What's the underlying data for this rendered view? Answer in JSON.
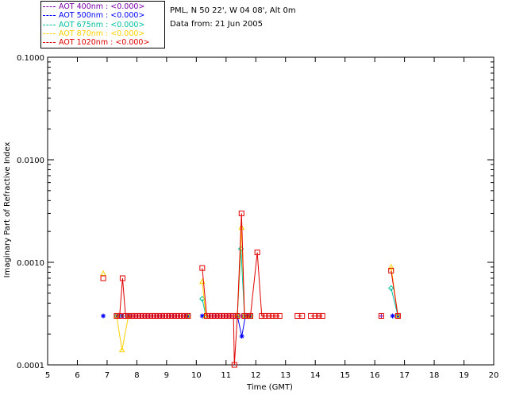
{
  "legend": [
    {
      "label": "AOT  400nm : <0.000>",
      "color": "#7a00a8"
    },
    {
      "label": "AOT  500nm : <0.000>",
      "color": "#0000ff"
    },
    {
      "label": "AOT  675nm : <0.000>",
      "color": "#00c0a0"
    },
    {
      "label": "AOT  870nm : <0.000>",
      "color": "#ffd000"
    },
    {
      "label": "AOT 1020nm : <0.000>",
      "color": "#e00000"
    }
  ],
  "info": {
    "location": "PML, N 50 22', W 04 08', Alt 0m",
    "date": "Data from: 21 Jun 2005"
  },
  "chart_data": {
    "type": "line",
    "xlabel": "Time (GMT)",
    "ylabel": "Imaginary Part of Refractive Index",
    "xlim": [
      5,
      20
    ],
    "ylim": [
      0.0001,
      0.1
    ],
    "yscale": "log",
    "x_ticks": [
      "5",
      "6",
      "7",
      "8",
      "9",
      "10",
      "11",
      "12",
      "13",
      "14",
      "15",
      "16",
      "17",
      "18",
      "19",
      "20"
    ],
    "y_ticks": [
      "0.0001",
      "0.0010",
      "0.0100",
      "0.1000"
    ],
    "grid": false,
    "series": [
      {
        "name": "AOT  400nm",
        "color": "#7a00a8",
        "marker": "plus",
        "segments": [
          [
            [
              6.87,
              0.0003
            ]
          ],
          [
            [
              7.32,
              0.0003
            ],
            [
              7.42,
              0.0003
            ],
            [
              7.52,
              0.0003
            ],
            [
              7.62,
              0.0003
            ],
            [
              7.72,
              0.0003
            ],
            [
              7.82,
              0.0003
            ],
            [
              7.92,
              0.0003
            ],
            [
              8.02,
              0.0003
            ],
            [
              8.12,
              0.0003
            ],
            [
              8.22,
              0.0003
            ],
            [
              8.32,
              0.0003
            ],
            [
              8.42,
              0.0003
            ],
            [
              8.52,
              0.0003
            ],
            [
              8.62,
              0.0003
            ],
            [
              8.72,
              0.0003
            ],
            [
              8.82,
              0.0003
            ],
            [
              8.92,
              0.0003
            ],
            [
              9.02,
              0.0003
            ],
            [
              9.12,
              0.0003
            ],
            [
              9.22,
              0.0003
            ],
            [
              9.32,
              0.0003
            ],
            [
              9.42,
              0.0003
            ],
            [
              9.52,
              0.0003
            ],
            [
              9.62,
              0.0003
            ],
            [
              9.72,
              0.0003
            ]
          ],
          [
            [
              10.2,
              0.0003
            ],
            [
              10.35,
              0.0003
            ],
            [
              10.45,
              0.0003
            ],
            [
              10.55,
              0.0003
            ],
            [
              10.65,
              0.0003
            ],
            [
              10.75,
              0.0003
            ],
            [
              10.85,
              0.0003
            ],
            [
              10.95,
              0.0003
            ],
            [
              11.05,
              0.0003
            ],
            [
              11.15,
              0.0003
            ],
            [
              11.25,
              0.0003
            ],
            [
              11.4,
              0.0003
            ],
            [
              11.52,
              0.0003
            ],
            [
              11.62,
              0.0003
            ],
            [
              11.72,
              0.0003
            ],
            [
              11.82,
              0.0003
            ]
          ],
          [
            [
              16.22,
              0.0003
            ]
          ],
          [
            [
              16.6,
              0.0003
            ],
            [
              16.78,
              0.0003
            ]
          ]
        ]
      },
      {
        "name": "AOT  500nm",
        "color": "#0000ff",
        "marker": "star",
        "segments": [
          [
            [
              6.87,
              0.0003
            ]
          ],
          [
            [
              7.32,
              0.0003
            ],
            [
              7.5,
              0.0003
            ],
            [
              7.72,
              0.0003
            ],
            [
              9.72,
              0.0003
            ]
          ],
          [
            [
              10.2,
              0.0003
            ],
            [
              11.38,
              0.0003
            ],
            [
              11.53,
              0.00019
            ],
            [
              11.65,
              0.0003
            ],
            [
              11.82,
              0.0003
            ]
          ],
          [
            [
              16.6,
              0.0003
            ],
            [
              16.78,
              0.0003
            ]
          ]
        ]
      },
      {
        "name": "AOT  675nm",
        "color": "#00c0a0",
        "marker": "diamond",
        "segments": [
          [
            [
              7.32,
              0.0003
            ],
            [
              9.72,
              0.0003
            ]
          ],
          [
            [
              10.2,
              0.00044
            ],
            [
              10.32,
              0.0003
            ],
            [
              11.38,
              0.0003
            ],
            [
              11.5,
              0.00135
            ],
            [
              11.62,
              0.0003
            ],
            [
              11.82,
              0.0003
            ]
          ],
          [
            [
              16.55,
              0.00056
            ],
            [
              16.78,
              0.0003
            ]
          ]
        ]
      },
      {
        "name": "AOT  870nm",
        "color": "#ffd000",
        "marker": "triangle",
        "segments": [
          [
            [
              6.87,
              0.00078
            ]
          ],
          [
            [
              7.32,
              0.0003
            ],
            [
              7.5,
              0.00014
            ],
            [
              7.72,
              0.0003
            ],
            [
              9.72,
              0.0003
            ]
          ],
          [
            [
              10.2,
              0.00065
            ],
            [
              10.32,
              0.0003
            ],
            [
              11.38,
              0.0003
            ],
            [
              11.52,
              0.0022
            ],
            [
              11.62,
              0.0003
            ],
            [
              11.82,
              0.0003
            ]
          ],
          [
            [
              16.55,
              0.0009
            ],
            [
              16.78,
              0.0003
            ]
          ]
        ]
      },
      {
        "name": "AOT 1020nm",
        "color": "#e00000",
        "marker": "square",
        "segments": [
          [
            [
              6.87,
              0.0007
            ]
          ],
          [
            [
              7.32,
              0.0003
            ],
            [
              7.42,
              0.0003
            ],
            [
              7.52,
              0.0007
            ],
            [
              7.62,
              0.0003
            ],
            [
              7.72,
              0.0003
            ],
            [
              7.82,
              0.0003
            ],
            [
              7.92,
              0.0003
            ],
            [
              8.02,
              0.0003
            ],
            [
              8.12,
              0.0003
            ],
            [
              8.22,
              0.0003
            ],
            [
              8.32,
              0.0003
            ],
            [
              8.42,
              0.0003
            ],
            [
              8.52,
              0.0003
            ],
            [
              8.62,
              0.0003
            ],
            [
              8.72,
              0.0003
            ],
            [
              8.82,
              0.0003
            ],
            [
              8.92,
              0.0003
            ],
            [
              9.02,
              0.0003
            ],
            [
              9.12,
              0.0003
            ],
            [
              9.22,
              0.0003
            ],
            [
              9.32,
              0.0003
            ],
            [
              9.42,
              0.0003
            ],
            [
              9.52,
              0.0003
            ],
            [
              9.62,
              0.0003
            ],
            [
              9.72,
              0.0003
            ]
          ],
          [
            [
              10.2,
              0.00088
            ],
            [
              10.35,
              0.0003
            ],
            [
              10.45,
              0.0003
            ],
            [
              10.55,
              0.0003
            ],
            [
              10.65,
              0.0003
            ],
            [
              10.75,
              0.0003
            ],
            [
              10.85,
              0.0003
            ],
            [
              10.95,
              0.0003
            ],
            [
              11.05,
              0.0003
            ],
            [
              11.15,
              0.0003
            ],
            [
              11.25,
              0.0003
            ],
            [
              11.28,
              0.0001
            ],
            [
              11.38,
              0.0003
            ],
            [
              11.52,
              0.003
            ],
            [
              11.62,
              0.0003
            ],
            [
              11.72,
              0.0003
            ],
            [
              11.82,
              0.0003
            ],
            [
              12.05,
              0.00125
            ],
            [
              12.2,
              0.0003
            ],
            [
              12.32,
              0.0003
            ],
            [
              12.44,
              0.0003
            ],
            [
              12.56,
              0.0003
            ],
            [
              12.68,
              0.0003
            ],
            [
              12.8,
              0.0003
            ]
          ],
          [
            [
              13.4,
              0.0003
            ],
            [
              13.56,
              0.0003
            ]
          ],
          [
            [
              13.85,
              0.0003
            ],
            [
              14.0,
              0.0003
            ],
            [
              14.12,
              0.0003
            ],
            [
              14.24,
              0.0003
            ]
          ],
          [
            [
              16.22,
              0.0003
            ]
          ],
          [
            [
              16.55,
              0.00083
            ],
            [
              16.78,
              0.0003
            ]
          ]
        ]
      }
    ]
  }
}
